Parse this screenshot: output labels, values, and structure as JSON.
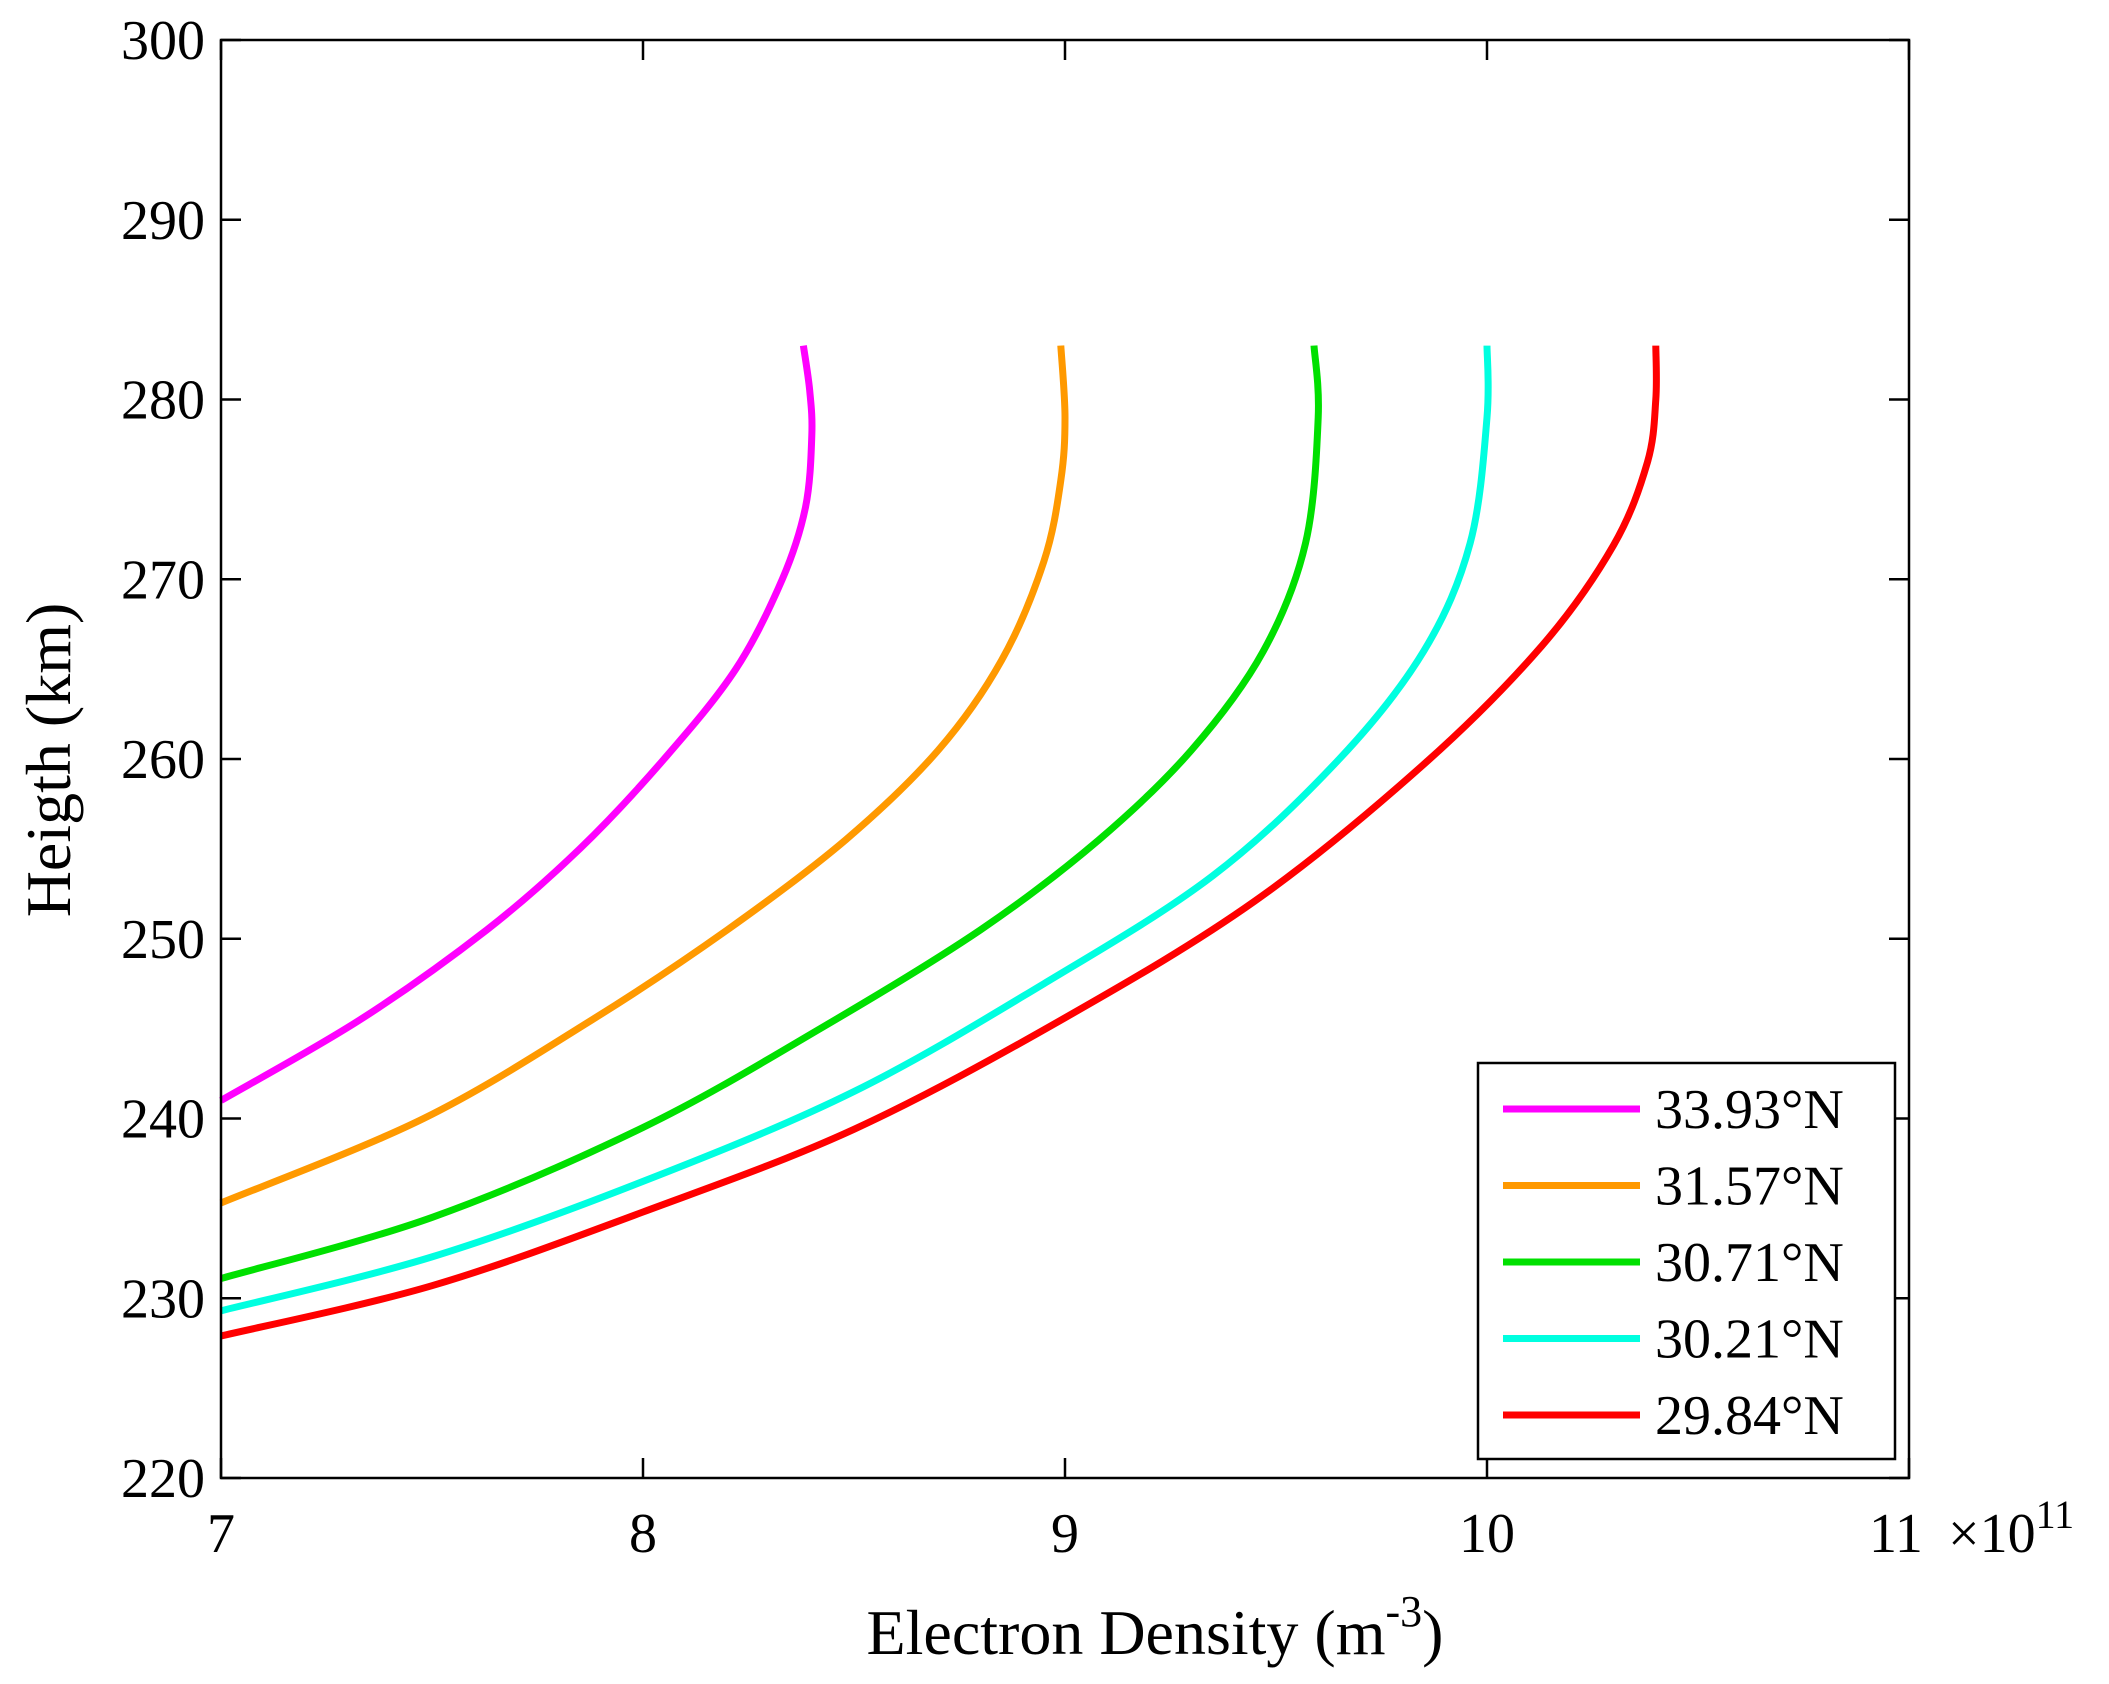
{
  "chart_data": {
    "type": "line",
    "title": "",
    "xlabel": "Electron Density (m",
    "xlabel_sup": "-3",
    "xlabel_suffix": ")",
    "ylabel": "Heigth (km)",
    "xlim": [
      7,
      11
    ],
    "ylim": [
      220,
      300
    ],
    "x_ticks": [
      7,
      8,
      9,
      10,
      11
    ],
    "x_tick_labels": [
      "7",
      "8",
      "9",
      "10",
      "11"
    ],
    "x_exponent_label": "×10",
    "x_exponent_sup": "11",
    "y_ticks": [
      220,
      230,
      240,
      250,
      260,
      270,
      280,
      290,
      300
    ],
    "y_tick_labels": [
      "220",
      "230",
      "240",
      "250",
      "260",
      "270",
      "280",
      "290",
      "300"
    ],
    "grid": false,
    "legend_position": "bottom-right",
    "series": [
      {
        "name": "33.93°N",
        "color": "#ff00ff",
        "peak": {
          "x": 8.4,
          "y": 278
        },
        "points": [
          [
            7.0,
            241
          ],
          [
            7.33,
            245.5
          ],
          [
            7.63,
            250.5
          ],
          [
            7.85,
            255
          ],
          [
            8.05,
            260
          ],
          [
            8.22,
            265
          ],
          [
            8.33,
            270
          ],
          [
            8.385,
            274
          ],
          [
            8.4,
            278
          ],
          [
            8.395,
            280.5
          ],
          [
            8.38,
            283
          ]
        ]
      },
      {
        "name": "31.57°N",
        "color": "#ff9900",
        "peak": {
          "x": 9.0,
          "y": 279
        },
        "points": [
          [
            7.0,
            235.3
          ],
          [
            7.48,
            240
          ],
          [
            7.88,
            245.5
          ],
          [
            8.2,
            250.5
          ],
          [
            8.48,
            255.5
          ],
          [
            8.7,
            260.5
          ],
          [
            8.85,
            265.5
          ],
          [
            8.95,
            271
          ],
          [
            8.99,
            275.5
          ],
          [
            9.0,
            279
          ],
          [
            8.99,
            283
          ]
        ]
      },
      {
        "name": "30.71°N",
        "color": "#00e000",
        "peak": {
          "x": 9.6,
          "y": 279
        },
        "points": [
          [
            7.0,
            231.1
          ],
          [
            7.5,
            234.5
          ],
          [
            8.0,
            239.5
          ],
          [
            8.42,
            245
          ],
          [
            8.8,
            250.5
          ],
          [
            9.08,
            255.5
          ],
          [
            9.3,
            260.5
          ],
          [
            9.47,
            266
          ],
          [
            9.57,
            272
          ],
          [
            9.6,
            279
          ],
          [
            9.59,
            283
          ]
        ]
      },
      {
        "name": "30.21°N",
        "color": "#00ffe0",
        "peak": {
          "x": 10.0,
          "y": 279
        },
        "points": [
          [
            7.0,
            229.3
          ],
          [
            7.5,
            232.3
          ],
          [
            8.0,
            236.5
          ],
          [
            8.5,
            241.5
          ],
          [
            8.95,
            247.5
          ],
          [
            9.35,
            253.5
          ],
          [
            9.65,
            260
          ],
          [
            9.85,
            266
          ],
          [
            9.96,
            272
          ],
          [
            10.0,
            279
          ],
          [
            10.0,
            283
          ]
        ]
      },
      {
        "name": "29.84°N",
        "color": "#ff0000",
        "peak": {
          "x": 10.4,
          "y": 280
        },
        "points": [
          [
            7.0,
            227.9
          ],
          [
            7.5,
            230.7
          ],
          [
            8.0,
            234.8
          ],
          [
            8.5,
            239.4
          ],
          [
            9.0,
            245.6
          ],
          [
            9.45,
            252.1
          ],
          [
            9.85,
            259.7
          ],
          [
            10.13,
            266.3
          ],
          [
            10.3,
            271.9
          ],
          [
            10.38,
            276.5
          ],
          [
            10.4,
            280
          ],
          [
            10.4,
            283
          ]
        ]
      }
    ]
  }
}
